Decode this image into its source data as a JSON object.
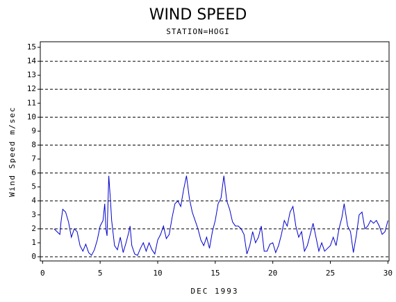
{
  "chart_data": {
    "type": "line",
    "title": "WIND SPEED",
    "subtitle": "STATION=HOGI",
    "y_label": "Wind Speed m/sec",
    "x_label": "DEC 1993",
    "xlim": [
      -0.2,
      30.1
    ],
    "ylim": [
      -0.3,
      15.4
    ],
    "xticks": [
      0,
      5,
      10,
      15,
      20,
      25,
      30
    ],
    "yticks": [
      0,
      1,
      2,
      3,
      4,
      5,
      6,
      7,
      8,
      9,
      10,
      11,
      12,
      13,
      14,
      15
    ],
    "grid_values": [
      0,
      2,
      4,
      6,
      8,
      10,
      12,
      14
    ],
    "x": [
      1.0,
      1.25,
      1.5,
      1.6,
      1.75,
      2.0,
      2.25,
      2.5,
      2.75,
      3.0,
      3.25,
      3.5,
      3.75,
      4.0,
      4.25,
      4.5,
      4.75,
      5.0,
      5.25,
      5.4,
      5.5,
      5.6,
      5.75,
      5.9,
      6.0,
      6.25,
      6.5,
      6.75,
      7.0,
      7.25,
      7.5,
      7.6,
      7.75,
      8.0,
      8.25,
      8.5,
      8.75,
      9.0,
      9.25,
      9.5,
      9.75,
      10.0,
      10.25,
      10.5,
      10.75,
      11.0,
      11.25,
      11.5,
      11.75,
      12.0,
      12.25,
      12.5,
      12.75,
      13.0,
      13.25,
      13.5,
      13.75,
      14.0,
      14.25,
      14.5,
      14.75,
      15.0,
      15.25,
      15.5,
      15.75,
      16.0,
      16.25,
      16.5,
      16.75,
      17.0,
      17.25,
      17.5,
      17.75,
      18.0,
      18.25,
      18.5,
      18.75,
      19.0,
      19.25,
      19.5,
      19.75,
      20.0,
      20.25,
      20.5,
      20.75,
      21.0,
      21.25,
      21.5,
      21.75,
      22.0,
      22.25,
      22.5,
      22.75,
      23.0,
      23.25,
      23.5,
      23.75,
      24.0,
      24.25,
      24.5,
      24.75,
      25.0,
      25.25,
      25.5,
      25.75,
      26.0,
      26.2,
      26.5,
      26.75,
      27.0,
      27.25,
      27.5,
      27.75,
      28.0,
      28.25,
      28.5,
      28.75,
      29.0,
      29.25,
      29.5,
      29.75,
      30.0
    ],
    "series": [
      {
        "name": "Wind Speed",
        "color": "#0000cc",
        "values": [
          2.0,
          1.8,
          1.6,
          2.5,
          3.4,
          3.2,
          2.5,
          1.4,
          2.0,
          1.8,
          0.8,
          0.4,
          0.9,
          0.3,
          0.1,
          0.5,
          1.2,
          2.2,
          2.6,
          3.8,
          2.0,
          1.5,
          5.8,
          4.0,
          2.6,
          0.8,
          0.5,
          1.4,
          0.3,
          1.0,
          1.8,
          2.2,
          0.8,
          0.2,
          0.1,
          0.6,
          1.0,
          0.4,
          1.0,
          0.5,
          0.2,
          1.2,
          1.6,
          2.2,
          1.3,
          1.6,
          2.8,
          3.8,
          4.0,
          3.6,
          4.8,
          5.8,
          4.2,
          3.2,
          2.6,
          2.0,
          1.2,
          0.8,
          1.4,
          0.6,
          1.8,
          2.6,
          3.8,
          4.2,
          5.8,
          4.0,
          3.4,
          2.5,
          2.2,
          2.2,
          2.0,
          1.6,
          0.2,
          0.8,
          1.8,
          1.0,
          1.4,
          2.2,
          0.4,
          0.4,
          0.9,
          1.0,
          0.3,
          0.8,
          1.6,
          2.6,
          2.2,
          3.2,
          3.6,
          2.2,
          1.4,
          1.8,
          0.4,
          0.8,
          1.6,
          2.4,
          1.4,
          0.4,
          1.0,
          0.4,
          0.6,
          0.8,
          1.4,
          0.8,
          2.0,
          2.8,
          3.8,
          2.2,
          1.8,
          0.3,
          1.5,
          3.0,
          3.2,
          2.0,
          2.2,
          2.6,
          2.4,
          2.6,
          2.2,
          1.6,
          1.8,
          2.6
        ]
      }
    ]
  }
}
